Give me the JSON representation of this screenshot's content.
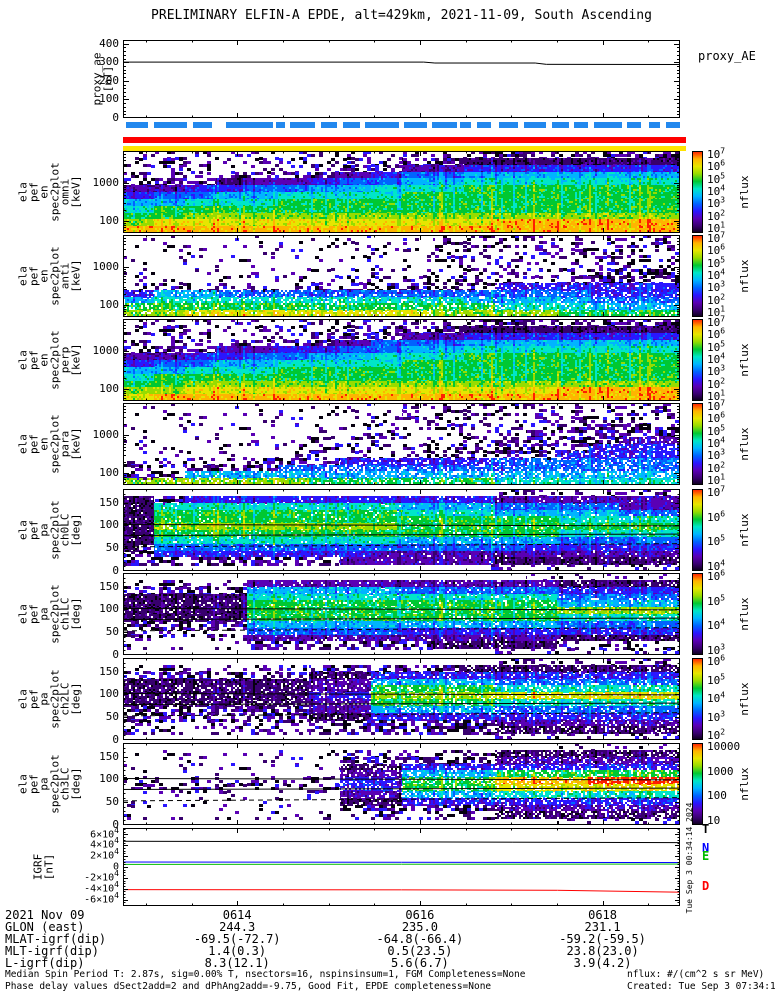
{
  "title": "PRELIMINARY ELFIN-A EPDE, alt=429km, 2021-11-09, South Ascending",
  "created_vertical": "Tue Sep 3 00:34:14 2024",
  "footer": {
    "l1": "Median Spin Period T: 2.87s, sig=0.00% T, nsectors=16, nspinsinsum=1, FGM Completeness=None",
    "l2": "Phase delay values dSect2add=2 and dPhAng2add=-9.75, Good Fit, EPDE completeness=None",
    "r1": "nflux: #/(cm^2 s sr MeV)",
    "r2": "Created: Tue Sep  3 07:34:14 2024"
  },
  "annotation_table": {
    "rows": [
      {
        "label": "2021 Nov 09",
        "values": [
          "0614",
          "0616",
          "0618"
        ]
      },
      {
        "label": "GLON (east)",
        "values": [
          "244.3",
          "235.0",
          "231.1"
        ]
      },
      {
        "label": "MLAT-igrf(dip)",
        "values": [
          "-69.5(-72.7)",
          "-64.8(-66.4)",
          "-59.2(-59.5)"
        ]
      },
      {
        "label": "MLT-igrf(dip)",
        "values": [
          "1.4(0.3)",
          "0.5(23.5)",
          "23.8(23.0)"
        ]
      },
      {
        "label": "L-igrf(dip)",
        "values": [
          "8.3(12.1)",
          "5.6(6.7)",
          "3.9(4.2)"
        ]
      }
    ]
  },
  "chart_data": {
    "type": "heatmap",
    "time_axis": {
      "labels": [
        "0614",
        "0616",
        "0618"
      ],
      "major_fracs": [
        0.205,
        0.533,
        0.861
      ],
      "minor_start": 0.041,
      "minor_step": 0.082
    },
    "proxy_ae": {
      "right_label": "proxy_AE",
      "label_lines": [
        "proxy_ae",
        "[nT]"
      ],
      "ylim": [
        0,
        420
      ],
      "yticks": [
        {
          "v": 400,
          "t": "400"
        },
        {
          "v": 300,
          "t": "300"
        },
        {
          "v": 200,
          "t": "200"
        },
        {
          "v": 100,
          "t": "100"
        },
        {
          "v": 0,
          "t": "0"
        }
      ],
      "line": [
        [
          0,
          301
        ],
        [
          0.54,
          301
        ],
        [
          0.56,
          296
        ],
        [
          0.74,
          296
        ],
        [
          0.76,
          289
        ],
        [
          1,
          288
        ]
      ]
    },
    "status_bars": {
      "blue_color": "#2288ee",
      "red_color": "#ff0000",
      "yellow_color": "#ffe400",
      "blue_segments": [
        [
          0.005,
          0.045
        ],
        [
          0.055,
          0.115
        ],
        [
          0.125,
          0.16
        ],
        [
          0.185,
          0.27
        ],
        [
          0.275,
          0.29
        ],
        [
          0.3,
          0.345
        ],
        [
          0.355,
          0.385
        ],
        [
          0.395,
          0.425
        ],
        [
          0.435,
          0.495
        ],
        [
          0.505,
          0.545
        ],
        [
          0.555,
          0.6
        ],
        [
          0.605,
          0.625
        ],
        [
          0.635,
          0.66
        ],
        [
          0.675,
          0.71
        ],
        [
          0.72,
          0.76
        ],
        [
          0.77,
          0.8
        ],
        [
          0.81,
          0.835
        ],
        [
          0.845,
          0.895
        ],
        [
          0.905,
          0.93
        ],
        [
          0.945,
          0.965
        ],
        [
          0.975,
          1.0
        ]
      ]
    },
    "palette": [
      "#06000f",
      "#38006e",
      "#5a00b4",
      "#2a16ff",
      "#0064ff",
      "#00b4ff",
      "#00e6c8",
      "#00c832",
      "#96dc00",
      "#e6e600",
      "#ffb400",
      "#ff1e00"
    ],
    "spec_panels": [
      {
        "id": "omni",
        "kind": "energy",
        "label_lines": [
          "ela",
          "pef",
          "en",
          "spec2plot",
          "omni",
          "[keV]"
        ],
        "yticks": [
          {
            "v": 1000,
            "t": "1000"
          },
          {
            "v": 100,
            "t": "100"
          }
        ],
        "elim": [
          50,
          7000
        ],
        "holes": 0,
        "cb_ticks": [
          "10^7",
          "10^6",
          "10^5",
          "10^4",
          "10^3",
          "10^2",
          "10^1"
        ],
        "cb_label": "nflux",
        "grid": [
          "yyyyyyyyyyyyyyyyyyyyyyzzzzzzzzzzzzzz",
          "yyyyyyyyyyyyyyyyyyzzzz11111111111111",
          "yyyyyyyyyyyyyyzzzz222233333333333333",
          "yyyyyyyyzzzzzz2233444455555555555555",
          "zzzzzz112222334444555566666666666666",
          "222233334444555566666677777777777777",
          "334444555566666666777777777777777777",
          "555566666677777777777777777777777777",
          "667777777777777777777777777777777777",
          "777788888888888888888888888888888888",
          "889999999999999999999999aaaaaaaaaaaa",
          "aaaaaaaaaaaaaaaaaaaaaaaaaaaaaaaaaaaa"
        ]
      },
      {
        "id": "anti",
        "kind": "energy",
        "label_lines": [
          "ela",
          "pef",
          "en",
          "spec2plot",
          "anti",
          "[keV]"
        ],
        "yticks": [
          {
            "v": 1000,
            "t": "1000"
          },
          {
            "v": 100,
            "t": "100"
          }
        ],
        "elim": [
          50,
          7000
        ],
        "holes": 0.15,
        "cb_ticks": [
          "10^7",
          "10^6",
          "10^5",
          "10^4",
          "10^3",
          "10^2",
          "10^1"
        ],
        "cb_label": "nflux",
        "grid": [
          "xxxxxxxxxxxxxxxxxxxxyyyyyyyyyyyyyyyy",
          "xxxxxxxxxxxxxxxxxxxxyyyyyyyyyyyyyyyy",
          "xxxxxxxxxxxxxxxxxxxxyyyyyyyyyyyyyyyy",
          "xxxxxxxxxxxxxxxxxxxxyyyyyyyyyyyyyyyy",
          "xxxxxxxxxxxxxxxxxxyyyyyyyyyyyyyyyyyy",
          "xxxxxxxxxxxxxxxxyyyyyyyyyyyyyyzzzzzz",
          "xxxxxxxxxxxxxxyyyyyyyyyyyyyyzzzzzzzz",
          "yyyyyyyyyyyyzzzzzzzzzzzz333333333333",
          "335555444444444444444444444444333333",
          "556666666666666666666655555555444444",
          "777777777777777777777777666666555555",
          "888899999999999999998888888877777777"
        ]
      },
      {
        "id": "perp",
        "kind": "energy",
        "label_lines": [
          "ela",
          "pef",
          "en",
          "spec2plot",
          "perp",
          "[keV]"
        ],
        "yticks": [
          {
            "v": 1000,
            "t": "1000"
          },
          {
            "v": 100,
            "t": "100"
          }
        ],
        "elim": [
          50,
          7000
        ],
        "holes": 0,
        "cb_ticks": [
          "10^7",
          "10^6",
          "10^5",
          "10^4",
          "10^3",
          "10^2",
          "10^1"
        ],
        "cb_label": "nflux",
        "grid": [
          "yyyyyyyyyyyyyyyyyyyyyyzzzzzzzzzzzzzz",
          "yyyyyyyyyyyyyyyyzzzzzz11111111111111",
          "yyyyyyyyyyyyzzzzzz222233333333333333",
          "yyyyyyyyzzzzzz2244444455555555555555",
          "zzzzzz222233334444555566666666666666",
          "222233334444555566666677777777777777",
          "334444555566666666777777777777777777",
          "555566666677777777777777777777777777",
          "667777777777777777777777777777777777",
          "777788888888888888888888888888888888",
          "8888999999999999999999999999aaaaaaaa",
          "99aaaaaaaaaaaaaaaaaaaaaaaaaaaaaaaaaa"
        ]
      },
      {
        "id": "para",
        "kind": "energy",
        "label_lines": [
          "ela",
          "pef",
          "en",
          "spec2plot",
          "para",
          "[keV]"
        ],
        "yticks": [
          {
            "v": 1000,
            "t": "1000"
          },
          {
            "v": 100,
            "t": "100"
          }
        ],
        "elim": [
          50,
          7000
        ],
        "holes": 0.22,
        "cb_ticks": [
          "10^7",
          "10^6",
          "10^5",
          "10^4",
          "10^3",
          "10^2",
          "10^1"
        ],
        "cb_label": "nflux",
        "grid": [
          "xxxxxxxxxxxxxxxxxxyyyyyyyyyyyyyyyyyy",
          "xxxxxxxxxxxxxxxxxxyyyyyyyyyyyyyyyyyy",
          "xxxxxxxxxxxxxxxxyyyyyyyyyyyyyyyyyyyy",
          "xxxxxxxxxxxxxxyyyyyyyyyyyyyyzzzzzzzz",
          "xxxxxxxxxxxxyyyyyyyyyyyyyyzzzzzzzzzz",
          "xxxxxxxxxxxxyyyyyyyyyyyyzzzzzzzz2222",
          "xxxxxxxxxxxxyyyyyyyyyyyyzzzzzz333333",
          "xxxxxxxxxxyyyyyyyyyyzzzzzzzz33333333",
          "yyyyyyyyzzzzzz3333333333444444444444",
          "yyyyzzzzzz44444444444444444444444444",
          "zzzz55555555555555555555555555555555",
          "888888888888777777777777666666666666"
        ]
      },
      {
        "id": "ch0lc",
        "kind": "pa",
        "label_lines": [
          "ela",
          "pef",
          "pa",
          "spec2plot",
          "ch0LC",
          "[deg]"
        ],
        "yticks": [
          {
            "v": 150,
            "t": "150"
          },
          {
            "v": 100,
            "t": "100"
          },
          {
            "v": 50,
            "t": "50"
          },
          {
            "v": 0,
            "t": "0"
          }
        ],
        "holes": 0.05,
        "lines": {
          "solid": [
            [
              102,
              99
            ],
            [
              78,
              81
            ]
          ],
          "dashed": [
            [
              53,
              60
            ]
          ]
        },
        "cb_ticks": [
          "10^7",
          "10^6",
          "10^5",
          "10^4"
        ],
        "cb_label": "nflux",
        "grid": [
          "........................yyyyyyyyyyyy",
          "11zz33333333333333333333222222222222",
          "116666666666666666555555444444442222",
          "117777777777777777666666555555554444",
          "117777777777777777777777777766666666",
          "118888888888888888777777777777777777",
          "117777777777777777777777777766666666",
          "116666666666666666555555555544444444",
          "1z4444444444444444444444443333333333",
          "zz3333333333333322222222222222222222",
          "zzzzzzzzzzzzzz22222222221111111111111",
          "......................yyyyyyyyyyyyyy"
        ]
      },
      {
        "id": "ch1lc",
        "kind": "pa",
        "label_lines": [
          "ela",
          "pef",
          "pa",
          "spec2plot",
          "ch1LC",
          "[deg]"
        ],
        "yticks": [
          {
            "v": 150,
            "t": "150"
          },
          {
            "v": 100,
            "t": "100"
          },
          {
            "v": 50,
            "t": "50"
          },
          {
            "v": 0,
            "t": "0"
          }
        ],
        "holes": 0.08,
        "lines": {
          "solid": [
            [
              102,
              99
            ],
            [
              78,
              81
            ]
          ],
          "dashed": [
            [
              53,
              60
            ]
          ]
        },
        "cb_ticks": [
          "10^6",
          "10^5",
          "10^4",
          "10^3"
        ],
        "cb_label": "nflux",
        "grid": [
          "..........................xxxxxxxxxx",
          "yyyyyyyy2222222222222222222211111111",
          "zzzzzzzz5555555555444444444433333333",
          "111111116666666666666666666644444444",
          "111111117777777777777777777755555555",
          "111111117777777777777777777788888888",
          "111111117777777777777777777766666666",
          "zzzzzzzz5555555555555555555544444444",
          "yyyyyyyy4444444444333333333333333333",
          "yyyyyyyy2222222222222222222211111111",
          "xxxxxxxxzzzzzzzzzzzz11111111yyyyyyyy",
          "........................yyyyyyyyyyyy"
        ]
      },
      {
        "id": "ch2lc",
        "kind": "pa",
        "label_lines": [
          "ela",
          "pef",
          "pa",
          "spec2plot",
          "ch2LC",
          "[deg]"
        ],
        "yticks": [
          {
            "v": 150,
            "t": "150"
          },
          {
            "v": 100,
            "t": "100"
          },
          {
            "v": 50,
            "t": "50"
          },
          {
            "v": 0,
            "t": "0"
          }
        ],
        "holes": 0.15,
        "lines": {
          "solid": [
            [
              102,
              99
            ],
            [
              78,
              81
            ]
          ],
          "dashed": [
            [
              53,
              60
            ]
          ]
        },
        "cb_ticks": [
          "10^6",
          "10^5",
          "10^4",
          "10^3",
          "10^2"
        ],
        "cb_label": "nflux",
        "grid": [
          "........................yyyyyyyyyyyy",
          "yyyyyyyyyyyyzzzzzzzzzz11111111111111",
          "zzzzzzzzzzzz111133333333333333333333",
          "111111111111222255555555444444444444",
          "111111111111222277777777666666666666",
          "111111111111333388888888999999999999",
          "111111111111222277777777666666666666",
          "zzzzzzzzzzzz222255555555444444444444",
          "zzzzzzzzzzzz111133333333333333333333",
          "yyyyyyyyyyyyzzzzzzzzzzzz222222222222",
          "yyyyyyyyyyyyzzzzzzzzzzzz111111111111",
          "........................yyyyyyyyyyyy"
        ]
      },
      {
        "id": "ch3lc",
        "kind": "pa",
        "label_lines": [
          "ela",
          "pef",
          "pa",
          "spec2plot",
          "ch3LC",
          "[deg]"
        ],
        "yticks": [
          {
            "v": 150,
            "t": "150"
          },
          {
            "v": 100,
            "t": "100"
          },
          {
            "v": 50,
            "t": "50"
          },
          {
            "v": 0,
            "t": "0"
          }
        ],
        "holes": 0.2,
        "lines": {
          "solid": [
            [
              102,
              99
            ],
            [
              78,
              81
            ]
          ],
          "dashed": [
            [
              53,
              60
            ]
          ]
        },
        "cb_ticks": [
          "10000",
          "1000",
          "100",
          "10"
        ],
        "cb_label": "nflux",
        "grid": [
          "............................xxxxxxxx",
          "xxxxxxxxxxxxxxyyyyyyyyyy111111111111",
          "xxxxxxxxxxxxxxzzzzzzzzzz222222222222",
          "xxxxxxxxxxxxxx1111333333333333333333",
          "xxxxxxxxxxxxxx2222555555777777777777",
          "yyyyyyyyyyyyyy3333777777aaaaaabbbbbb",
          "yyyyyyyyyyyyyy3333777777999999999999",
          "xxxxxxxxxxxxxx2222555555666666666666",
          "xxxxxxxxxxxxxx1111333333333333333333",
          "xxxxxxxxxxxxxxzzzzzzzzzz222222222222",
          "xxxxxxxxxxxxxxyyyyyyyyyy111111111111",
          "............................yyyyyyyy"
        ]
      }
    ],
    "igrf": {
      "label_lines": [
        "IGRF",
        "[nT]"
      ],
      "ylim": [
        -72000,
        72000
      ],
      "yticks": [
        {
          "v": 60000,
          "t": "6×10^4"
        },
        {
          "v": 40000,
          "t": "4×10^4"
        },
        {
          "v": 20000,
          "t": "2×10^4"
        },
        {
          "v": 0,
          "t": "0"
        },
        {
          "v": -20000,
          "t": "-2×10^4"
        },
        {
          "v": -40000,
          "t": "-4×10^4"
        },
        {
          "v": -60000,
          "t": "-6×10^4"
        }
      ],
      "series": [
        {
          "label": "T",
          "color": "#000000",
          "points": [
            [
              0,
              47500
            ],
            [
              0.35,
              46800
            ],
            [
              0.7,
              45800
            ],
            [
              1,
              45000
            ]
          ]
        },
        {
          "label": "N",
          "color": "#0000ff",
          "points": [
            [
              0,
              9200
            ],
            [
              1,
              8200
            ]
          ]
        },
        {
          "label": "E",
          "color": "#00bb00",
          "points": [
            [
              0,
              4800
            ],
            [
              1,
              5400
            ]
          ]
        },
        {
          "label": "D",
          "color": "#ff0000",
          "points": [
            [
              0,
              -41800
            ],
            [
              0.5,
              -42200
            ],
            [
              0.78,
              -43000
            ],
            [
              1,
              -46500
            ]
          ]
        }
      ]
    }
  }
}
